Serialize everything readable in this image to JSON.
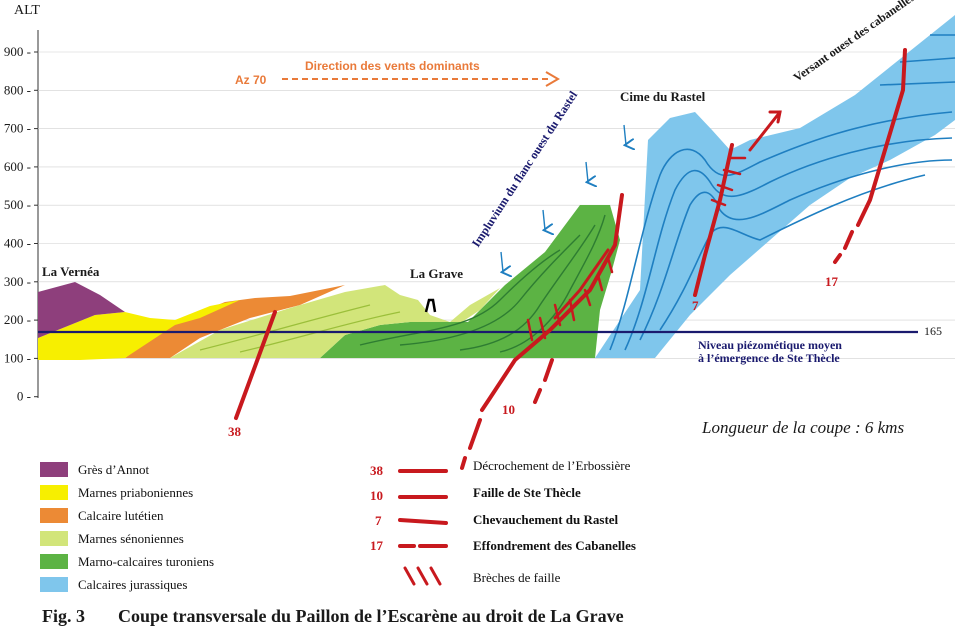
{
  "axis": {
    "label": "ALT",
    "ticks": [
      "900",
      "800",
      "700",
      "600",
      "500",
      "400",
      "300",
      "200",
      "100",
      "0"
    ]
  },
  "wind": {
    "azimuth": "Az 70",
    "label": "Direction des vents dominants"
  },
  "places": {
    "vernea": "La Vernéa",
    "grave": "La Grave",
    "rastel": "Cime du Rastel",
    "impluvium": "Impluvium du flanc ouest du Rastel",
    "versant": "Versant ouest des cabanelles"
  },
  "piezometric": {
    "value": "165",
    "line1": "Niveau piézométique moyen",
    "line2": "à l’émergence de Ste Thècle"
  },
  "section_length": "Longueur de la coupe : 6 kms",
  "fault_numbers": {
    "f38": "38",
    "f10": "10",
    "f7": "7",
    "f17": "17"
  },
  "legend_layers": [
    {
      "label": "Grès d’Annot",
      "color": "#8e3f7c"
    },
    {
      "label": "Marnes priaboniennes",
      "color": "#f7ef00"
    },
    {
      "label": "Calcaire lutétien",
      "color": "#ec8a35"
    },
    {
      "label": "Marnes sénoniennes",
      "color": "#d2e57a"
    },
    {
      "label": "Marno-calcaires turoniens",
      "color": "#5cb344"
    },
    {
      "label": "Calcaires jurassiques",
      "color": "#7fc6ec"
    }
  ],
  "legend_faults": [
    {
      "number": "38",
      "label": "Décrochement de l’Erbossière",
      "bold": false
    },
    {
      "number": "10",
      "label": "Faille de Ste Thècle",
      "bold": true
    },
    {
      "number": "7",
      "label": "Chevauchement du Rastel",
      "bold": true
    },
    {
      "number": "17",
      "label": "Effondrement des Cabanelles",
      "bold": true
    }
  ],
  "breccia_label": "Brèches de faille",
  "caption": {
    "fig": "Fig. 3",
    "title": "Coupe transversale du Paillon de l’Escarène au droit de La Grave"
  },
  "colors": {
    "fault": "#c8191e",
    "water_line": "#1a1a6e",
    "wind_arrow": "#e97a3a",
    "impluvium_arrow": "#1f7fc1"
  }
}
